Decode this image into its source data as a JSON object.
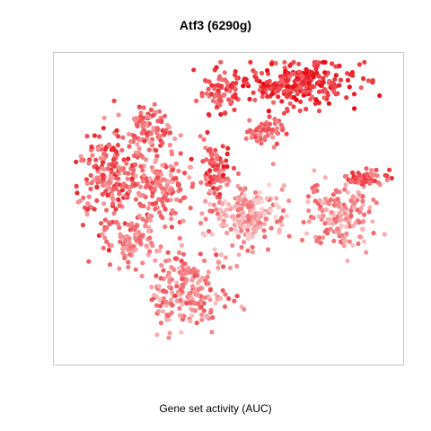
{
  "chart_data": {
    "type": "scatter",
    "title": "Atf3 (6290g)",
    "legend_title": "Gene set activity (AUC)",
    "xlabel": "",
    "ylabel": "",
    "axes_visible": false,
    "grid": false,
    "color_scale": {
      "low": "#fce4e4",
      "high": "#e8000b"
    },
    "clusters": [
      {
        "cx": 0.7,
        "cy": 0.92,
        "rx": 0.16,
        "ry": 0.07,
        "n": 260,
        "auc_min": 0.55,
        "auc_max": 1.0
      },
      {
        "cx": 0.47,
        "cy": 0.88,
        "rx": 0.06,
        "ry": 0.08,
        "n": 70,
        "auc_min": 0.45,
        "auc_max": 0.9
      },
      {
        "cx": 0.25,
        "cy": 0.77,
        "rx": 0.08,
        "ry": 0.06,
        "n": 90,
        "auc_min": 0.3,
        "auc_max": 0.75
      },
      {
        "cx": 0.14,
        "cy": 0.6,
        "rx": 0.1,
        "ry": 0.15,
        "n": 220,
        "auc_min": 0.3,
        "auc_max": 0.85
      },
      {
        "cx": 0.29,
        "cy": 0.57,
        "rx": 0.08,
        "ry": 0.12,
        "n": 160,
        "auc_min": 0.25,
        "auc_max": 0.7
      },
      {
        "cx": 0.46,
        "cy": 0.62,
        "rx": 0.04,
        "ry": 0.09,
        "n": 80,
        "auc_min": 0.4,
        "auc_max": 0.9
      },
      {
        "cx": 0.56,
        "cy": 0.48,
        "rx": 0.1,
        "ry": 0.09,
        "n": 200,
        "auc_min": 0.05,
        "auc_max": 0.55
      },
      {
        "cx": 0.83,
        "cy": 0.47,
        "rx": 0.09,
        "ry": 0.1,
        "n": 160,
        "auc_min": 0.15,
        "auc_max": 0.6
      },
      {
        "cx": 0.91,
        "cy": 0.6,
        "rx": 0.06,
        "ry": 0.03,
        "n": 60,
        "auc_min": 0.35,
        "auc_max": 0.8
      },
      {
        "cx": 0.38,
        "cy": 0.22,
        "rx": 0.11,
        "ry": 0.13,
        "n": 220,
        "auc_min": 0.15,
        "auc_max": 0.7
      },
      {
        "cx": 0.2,
        "cy": 0.39,
        "rx": 0.07,
        "ry": 0.06,
        "n": 70,
        "auc_min": 0.25,
        "auc_max": 0.6
      },
      {
        "cx": 0.61,
        "cy": 0.76,
        "rx": 0.05,
        "ry": 0.05,
        "n": 50,
        "auc_min": 0.35,
        "auc_max": 0.7
      }
    ]
  }
}
